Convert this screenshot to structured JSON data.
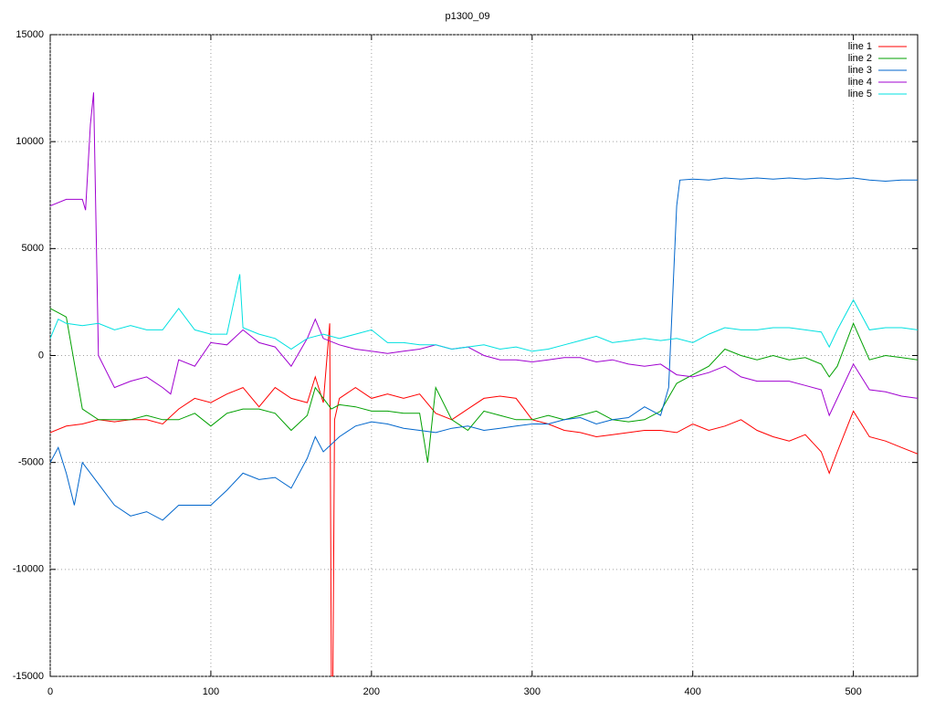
{
  "chart_data": {
    "type": "line",
    "title": "p1300_09",
    "xlim": [
      0,
      540
    ],
    "xticks": [
      0,
      100,
      200,
      300,
      400,
      500
    ],
    "ylim": [
      -15000,
      15000
    ],
    "yticks": [
      -15000,
      -10000,
      -5000,
      0,
      5000,
      10000,
      15000
    ],
    "grid": true,
    "legend": "top-right",
    "series": [
      {
        "name": "line 1",
        "color": "#ff0000",
        "x": [
          0,
          10,
          20,
          30,
          40,
          50,
          60,
          70,
          80,
          90,
          100,
          110,
          120,
          130,
          140,
          150,
          160,
          165,
          170,
          174,
          175,
          176,
          177,
          180,
          190,
          200,
          210,
          220,
          230,
          240,
          250,
          260,
          270,
          280,
          290,
          300,
          310,
          320,
          330,
          340,
          350,
          360,
          370,
          380,
          390,
          400,
          410,
          420,
          430,
          440,
          450,
          460,
          470,
          480,
          485,
          490,
          500,
          510,
          520,
          530,
          540
        ],
        "values": [
          -3600,
          -3300,
          -3200,
          -3000,
          -3100,
          -3000,
          -3000,
          -3200,
          -2500,
          -2000,
          -2200,
          -1800,
          -1500,
          -2400,
          -1500,
          -2000,
          -2200,
          -1000,
          -2200,
          1500,
          -15000,
          -15000,
          -3000,
          -2000,
          -1500,
          -2000,
          -1800,
          -2000,
          -1800,
          -2700,
          -3000,
          -2500,
          -2000,
          -1900,
          -2000,
          -3000,
          -3200,
          -3500,
          -3600,
          -3800,
          -3700,
          -3600,
          -3500,
          -3500,
          -3600,
          -3200,
          -3500,
          -3300,
          -3000,
          -3500,
          -3800,
          -4000,
          -3700,
          -4500,
          -5500,
          -4500,
          -2600,
          -3800,
          -4000,
          -4300,
          -4600
        ]
      },
      {
        "name": "line 2",
        "color": "#00a000",
        "x": [
          0,
          5,
          10,
          20,
          30,
          40,
          50,
          60,
          70,
          80,
          90,
          100,
          110,
          120,
          130,
          140,
          150,
          160,
          165,
          170,
          175,
          180,
          190,
          200,
          210,
          220,
          230,
          235,
          240,
          250,
          260,
          270,
          280,
          290,
          300,
          310,
          320,
          330,
          340,
          350,
          360,
          370,
          380,
          390,
          400,
          410,
          420,
          430,
          440,
          450,
          460,
          470,
          480,
          485,
          490,
          500,
          510,
          520,
          530,
          540
        ],
        "values": [
          2200,
          2000,
          1800,
          -2500,
          -3000,
          -3000,
          -3000,
          -2800,
          -3000,
          -3000,
          -2700,
          -3300,
          -2700,
          -2500,
          -2500,
          -2700,
          -3500,
          -2800,
          -1500,
          -2000,
          -2500,
          -2300,
          -2400,
          -2600,
          -2600,
          -2700,
          -2700,
          -5000,
          -1500,
          -3000,
          -3500,
          -2600,
          -2800,
          -3000,
          -3000,
          -2800,
          -3000,
          -2800,
          -2600,
          -3000,
          -3100,
          -3000,
          -2600,
          -1300,
          -900,
          -500,
          300,
          0,
          -200,
          0,
          -200,
          -100,
          -400,
          -1000,
          -500,
          1500,
          -200,
          0,
          -100,
          -200
        ]
      },
      {
        "name": "line 3",
        "color": "#0066cc",
        "x": [
          0,
          5,
          10,
          15,
          20,
          30,
          40,
          50,
          60,
          70,
          80,
          90,
          100,
          110,
          120,
          130,
          140,
          150,
          160,
          165,
          170,
          180,
          190,
          200,
          210,
          220,
          230,
          240,
          250,
          260,
          270,
          280,
          290,
          300,
          310,
          320,
          330,
          340,
          350,
          360,
          370,
          380,
          385,
          390,
          392,
          400,
          410,
          420,
          430,
          440,
          450,
          460,
          470,
          480,
          490,
          500,
          510,
          520,
          530,
          540
        ],
        "values": [
          -5000,
          -4300,
          -5500,
          -7000,
          -5000,
          -6000,
          -7000,
          -7500,
          -7300,
          -7700,
          -7000,
          -7000,
          -7000,
          -6300,
          -5500,
          -5800,
          -5700,
          -6200,
          -4800,
          -3800,
          -4500,
          -3800,
          -3300,
          -3100,
          -3200,
          -3400,
          -3500,
          -3600,
          -3400,
          -3300,
          -3500,
          -3400,
          -3300,
          -3200,
          -3200,
          -3000,
          -2900,
          -3200,
          -3000,
          -2900,
          -2400,
          -2800,
          -1500,
          7000,
          8200,
          8250,
          8200,
          8300,
          8250,
          8300,
          8250,
          8300,
          8250,
          8300,
          8250,
          8300,
          8200,
          8150,
          8200,
          8200
        ]
      },
      {
        "name": "line 4",
        "color": "#a000d0",
        "x": [
          0,
          10,
          20,
          22,
          25,
          27,
          30,
          40,
          50,
          60,
          70,
          75,
          80,
          90,
          100,
          110,
          120,
          130,
          140,
          150,
          160,
          165,
          170,
          180,
          190,
          200,
          210,
          220,
          230,
          240,
          250,
          260,
          270,
          280,
          290,
          300,
          310,
          320,
          330,
          340,
          350,
          360,
          370,
          380,
          390,
          400,
          410,
          420,
          430,
          440,
          450,
          460,
          470,
          480,
          485,
          490,
          500,
          510,
          520,
          530,
          540
        ],
        "values": [
          7000,
          7300,
          7300,
          6800,
          10800,
          12300,
          0,
          -1500,
          -1200,
          -1000,
          -1500,
          -1800,
          -200,
          -500,
          600,
          500,
          1200,
          600,
          400,
          -500,
          800,
          1700,
          800,
          500,
          300,
          200,
          100,
          200,
          300,
          500,
          300,
          400,
          0,
          -200,
          -200,
          -300,
          -200,
          -100,
          -100,
          -300,
          -200,
          -400,
          -500,
          -400,
          -900,
          -1000,
          -800,
          -500,
          -1000,
          -1200,
          -1200,
          -1200,
          -1400,
          -1600,
          -2800,
          -2000,
          -400,
          -1600,
          -1700,
          -1900,
          -2000
        ]
      },
      {
        "name": "line 5",
        "color": "#00e0e0",
        "x": [
          0,
          5,
          10,
          20,
          30,
          40,
          50,
          60,
          70,
          80,
          90,
          100,
          110,
          118,
          120,
          130,
          140,
          150,
          160,
          170,
          180,
          190,
          200,
          210,
          220,
          230,
          240,
          250,
          260,
          270,
          280,
          290,
          300,
          310,
          320,
          330,
          340,
          350,
          360,
          370,
          380,
          390,
          400,
          410,
          420,
          430,
          440,
          450,
          460,
          470,
          480,
          485,
          490,
          500,
          510,
          520,
          530,
          540
        ],
        "values": [
          800,
          1700,
          1500,
          1400,
          1500,
          1200,
          1400,
          1200,
          1200,
          2200,
          1200,
          1000,
          1000,
          3800,
          1300,
          1000,
          800,
          300,
          800,
          1000,
          800,
          1000,
          1200,
          600,
          600,
          500,
          500,
          300,
          400,
          500,
          300,
          400,
          200,
          300,
          500,
          700,
          900,
          600,
          700,
          800,
          700,
          800,
          600,
          1000,
          1300,
          1200,
          1200,
          1300,
          1300,
          1200,
          1100,
          400,
          1200,
          2600,
          1200,
          1300,
          1300,
          1200
        ]
      }
    ]
  }
}
